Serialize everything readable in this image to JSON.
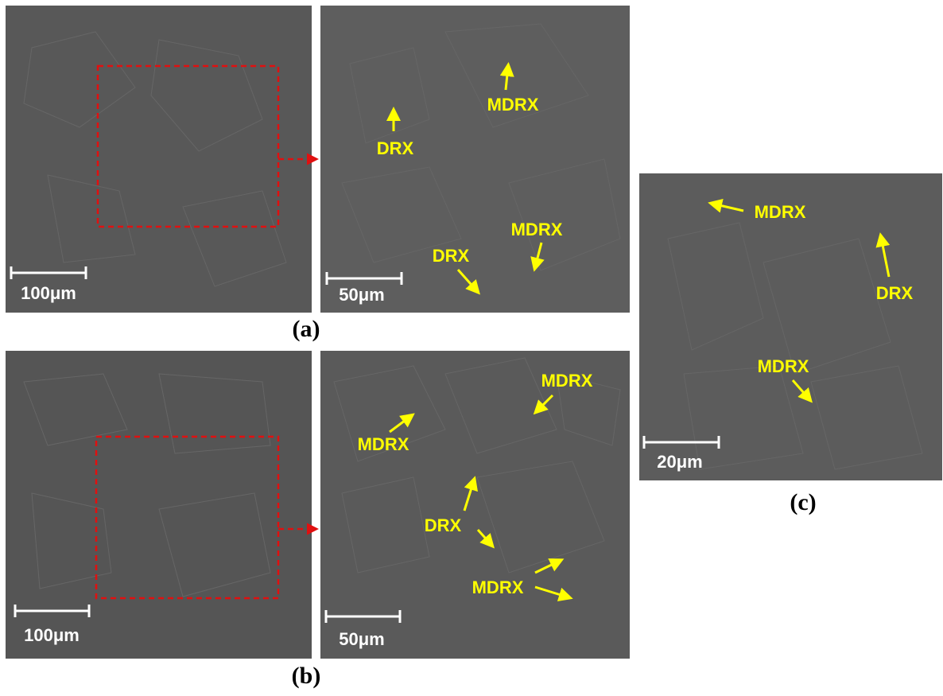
{
  "panels": [
    {
      "label": "(a)",
      "images": [
        {
          "scale_bar": "100μm"
        },
        {
          "scale_bar": "50μm",
          "annotations": [
            "MDRX",
            "DRX",
            "MDRX",
            "DRX"
          ]
        }
      ]
    },
    {
      "label": "(b)",
      "images": [
        {
          "scale_bar": "100μm"
        },
        {
          "scale_bar": "50μm",
          "annotations": [
            "MDRX",
            "MDRX",
            "DRX",
            "MDRX"
          ]
        }
      ]
    },
    {
      "label": "(c)",
      "images": [
        {
          "scale_bar": "20μm",
          "annotations": [
            "MDRX",
            "DRX",
            "MDRX"
          ]
        }
      ]
    }
  ]
}
